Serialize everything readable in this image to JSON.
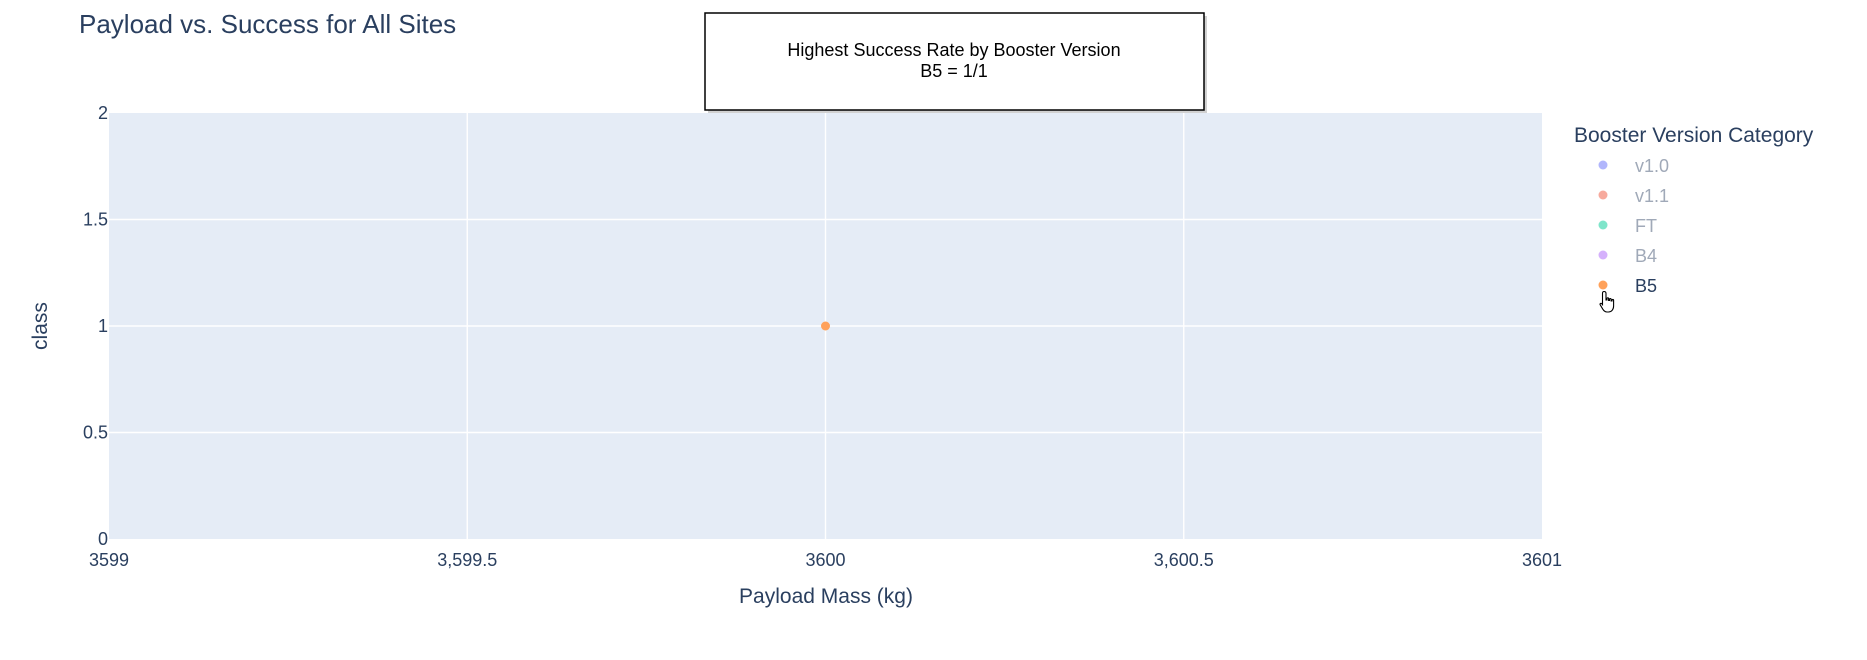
{
  "chart_data": {
    "type": "scatter",
    "title": "Payload vs. Success for All Sites",
    "xlabel": "Payload Mass (kg)",
    "ylabel": "class",
    "xlim": [
      3599,
      3601
    ],
    "ylim": [
      0,
      2
    ],
    "x_ticks": [
      {
        "value": 3599,
        "label": "3599"
      },
      {
        "value": 3599.5,
        "label": "3,599.5"
      },
      {
        "value": 3600,
        "label": "3600"
      },
      {
        "value": 3600.5,
        "label": "3,600.5"
      },
      {
        "value": 3601,
        "label": "3601"
      }
    ],
    "y_ticks": [
      {
        "value": 0,
        "label": "0"
      },
      {
        "value": 0.5,
        "label": "0.5"
      },
      {
        "value": 1,
        "label": "1"
      },
      {
        "value": 1.5,
        "label": "1.5"
      },
      {
        "value": 2,
        "label": "2"
      }
    ],
    "grid": true,
    "legend": {
      "title": "Booster Version Category",
      "position": "right",
      "items": [
        {
          "name": "v1.0",
          "color": "#636efa",
          "active": false
        },
        {
          "name": "v1.1",
          "color": "#ef553b",
          "active": false
        },
        {
          "name": "FT",
          "color": "#00cc96",
          "active": false
        },
        {
          "name": "B4",
          "color": "#ab63fa",
          "active": false
        },
        {
          "name": "B5",
          "color": "#ffa15a",
          "active": true
        }
      ]
    },
    "series": [
      {
        "name": "B5",
        "color": "#ffa15a",
        "points": [
          {
            "x": 3600,
            "y": 1
          }
        ]
      }
    ],
    "annotation": {
      "lines": [
        "Highest Success Rate by Booster Version",
        "B5 = 1/1"
      ]
    },
    "colors": {
      "plot_bg": "#e5ecf6",
      "grid": "#ffffff",
      "text": "#2a3f5f",
      "inactive_text": "#a0a9b8"
    }
  }
}
